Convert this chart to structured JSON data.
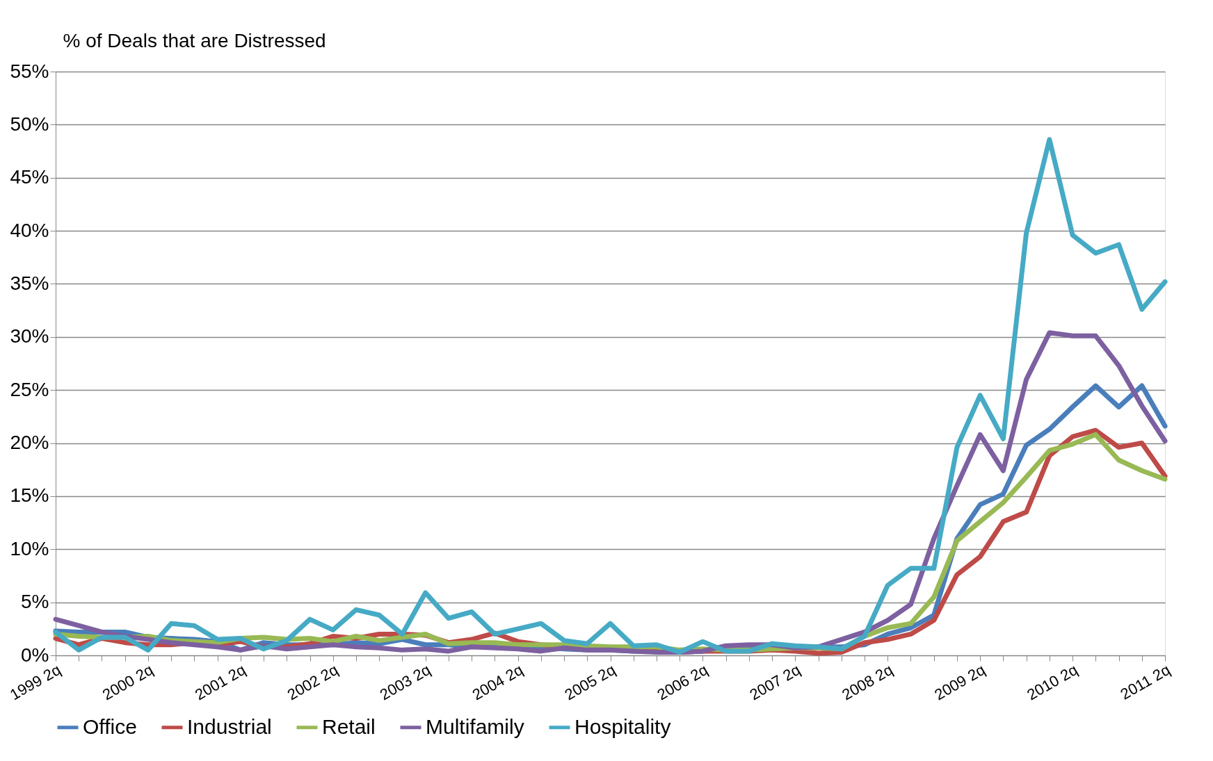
{
  "chart_data": {
    "type": "line",
    "ylabel": "% of Deals that are Distressed",
    "categories": [
      "1999 2q",
      null,
      null,
      null,
      "2000 2q",
      null,
      null,
      null,
      "2001 2q",
      null,
      null,
      null,
      "2002 2q",
      null,
      null,
      null,
      "2003 2q",
      null,
      null,
      null,
      "2004 2q",
      null,
      null,
      null,
      "2005 2q",
      null,
      null,
      null,
      "2006 2q",
      null,
      null,
      null,
      "2007 2q",
      null,
      null,
      null,
      "2008 2q",
      null,
      null,
      null,
      "2009 2q",
      null,
      null,
      null,
      "2010 2q",
      null,
      null,
      null,
      "2011 2q"
    ],
    "series": [
      {
        "name": "Office",
        "color": "#4a7ebb",
        "values": [
          2.3,
          2.2,
          2.2,
          2.2,
          1.7,
          1.6,
          1.5,
          1.3,
          0.5,
          1.2,
          1.0,
          1.0,
          1.0,
          1.2,
          1.1,
          1.5,
          1.0,
          1.0,
          0.8,
          0.8,
          0.7,
          0.8,
          0.6,
          0.5,
          0.5,
          0.4,
          0.4,
          0.3,
          0.4,
          0.5,
          0.6,
          0.8,
          0.8,
          0.8,
          0.8,
          1.0,
          2.0,
          2.6,
          3.8,
          11.0,
          14.2,
          15.2,
          19.8,
          21.3,
          23.4,
          25.4,
          23.4,
          25.4,
          21.6
        ]
      },
      {
        "name": "Industrial",
        "color": "#be4b48",
        "values": [
          1.6,
          1.0,
          1.6,
          1.2,
          1.0,
          1.0,
          1.2,
          1.0,
          1.3,
          0.8,
          0.8,
          1.1,
          1.8,
          1.6,
          2.0,
          2.0,
          1.9,
          1.2,
          1.5,
          2.1,
          1.3,
          1.0,
          0.8,
          0.7,
          0.6,
          0.5,
          0.4,
          0.3,
          0.4,
          0.4,
          0.4,
          0.5,
          0.4,
          0.2,
          0.3,
          1.2,
          1.5,
          2.0,
          3.3,
          7.6,
          9.3,
          12.6,
          13.5,
          18.8,
          20.6,
          21.2,
          19.6,
          20.0,
          16.9
        ]
      },
      {
        "name": "Retail",
        "color": "#98b954",
        "values": [
          2.0,
          1.8,
          1.7,
          1.7,
          1.8,
          1.4,
          1.3,
          1.2,
          1.6,
          1.7,
          1.5,
          1.6,
          1.3,
          1.8,
          1.4,
          1.7,
          2.0,
          1.1,
          1.2,
          1.2,
          1.0,
          1.0,
          1.0,
          0.9,
          0.8,
          0.8,
          0.8,
          0.5,
          0.6,
          0.5,
          0.5,
          0.6,
          0.7,
          0.7,
          0.6,
          1.8,
          2.6,
          3.0,
          5.5,
          10.8,
          12.6,
          14.4,
          16.8,
          19.3,
          19.9,
          20.8,
          18.4,
          17.4,
          16.6
        ]
      },
      {
        "name": "Multifamily",
        "color": "#7d60a0",
        "values": [
          3.4,
          2.8,
          2.2,
          1.8,
          1.5,
          1.2,
          1.0,
          0.8,
          0.5,
          0.9,
          0.6,
          0.8,
          1.0,
          0.8,
          0.7,
          0.5,
          0.6,
          0.4,
          0.8,
          0.7,
          0.6,
          0.4,
          0.7,
          0.5,
          0.5,
          0.4,
          0.3,
          0.3,
          0.4,
          0.9,
          1.0,
          1.0,
          0.7,
          0.8,
          1.5,
          2.2,
          3.3,
          4.8,
          11.0,
          16.0,
          20.8,
          17.4,
          26.0,
          30.4,
          30.1,
          30.1,
          27.3,
          23.5,
          20.2
        ]
      },
      {
        "name": "Hospitality",
        "color": "#46aac5",
        "values": [
          2.2,
          0.5,
          1.7,
          1.7,
          0.5,
          3.0,
          2.8,
          1.5,
          1.6,
          0.6,
          1.4,
          3.4,
          2.4,
          4.3,
          3.8,
          2.0,
          5.9,
          3.5,
          4.1,
          2.0,
          2.5,
          3.0,
          1.4,
          1.1,
          3.0,
          0.9,
          1.0,
          0.3,
          1.3,
          0.4,
          0.4,
          1.1,
          0.9,
          0.8,
          0.6,
          1.8,
          6.6,
          8.2,
          8.2,
          19.6,
          24.5,
          20.4,
          39.8,
          48.6,
          39.6,
          37.9,
          38.7,
          32.6,
          35.2
        ]
      }
    ],
    "ylim": [
      0,
      55
    ],
    "yticks": [
      {
        "value": 0,
        "label": "0%"
      },
      {
        "value": 5,
        "label": "5%"
      },
      {
        "value": 10,
        "label": "10%"
      },
      {
        "value": 15,
        "label": "15%"
      },
      {
        "value": 20,
        "label": "20%"
      },
      {
        "value": 25,
        "label": "25%"
      },
      {
        "value": 30,
        "label": "30%"
      },
      {
        "value": 35,
        "label": "35%"
      },
      {
        "value": 40,
        "label": "40%"
      },
      {
        "value": 45,
        "label": "45%"
      },
      {
        "value": 50,
        "label": "50%"
      },
      {
        "value": 55,
        "label": "55%"
      }
    ],
    "grid": "y",
    "legend": "bottom",
    "marker": "none",
    "line_style": "solid"
  }
}
